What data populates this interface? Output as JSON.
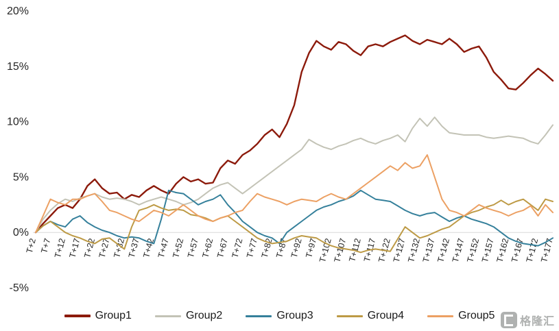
{
  "chart_data": {
    "type": "line",
    "title": "",
    "xlabel": "",
    "ylabel": "",
    "ylim": [
      -5,
      20
    ],
    "grid": "zero-line-only",
    "legend_position": "bottom",
    "x_tick_labels": [
      "T+2",
      "T+7",
      "T+12",
      "T+17",
      "T+22",
      "T+27",
      "T+32",
      "T+37",
      "T+42",
      "T+47",
      "T+52",
      "T+57",
      "T+62",
      "T+67",
      "T+72",
      "T+77",
      "T+82",
      "T+87",
      "T+92",
      "T+97",
      "T+102",
      "T+107",
      "T+112",
      "T+117",
      "T+122",
      "T+127",
      "T+132",
      "T+137",
      "T+142",
      "T+147",
      "T+152",
      "T+157",
      "T+162",
      "T+167",
      "T+172",
      "T+177"
    ],
    "y_ticks": [
      20,
      15,
      10,
      5,
      0,
      -5
    ],
    "y_tick_labels": [
      "20%",
      "15%",
      "10%",
      "5%",
      "0%",
      "-5%"
    ],
    "series": [
      {
        "name": "Group1",
        "color": "#8c1a0b",
        "width": 2.4,
        "values": [
          0,
          0.8,
          1.5,
          2.2,
          2.5,
          2.2,
          3.0,
          4.2,
          4.8,
          4.0,
          3.5,
          3.6,
          3.0,
          3.4,
          3.2,
          3.8,
          4.2,
          3.8,
          3.5,
          4.4,
          5.0,
          4.6,
          4.8,
          4.4,
          4.5,
          5.8,
          6.5,
          6.2,
          7.0,
          7.4,
          8.0,
          8.8,
          9.3,
          8.6,
          9.8,
          11.5,
          14.5,
          16.2,
          17.3,
          16.8,
          16.5,
          17.2,
          17.0,
          16.4,
          16.0,
          16.8,
          17.0,
          16.8,
          17.2,
          17.5,
          17.8,
          17.3,
          17.0,
          17.4,
          17.2,
          17.0,
          17.5,
          17.0,
          16.3,
          16.6,
          16.8,
          15.8,
          14.5,
          13.8,
          13.0,
          12.9,
          13.5,
          14.2,
          14.8,
          14.3,
          13.7
        ]
      },
      {
        "name": "Group2",
        "color": "#c3c3b6",
        "width": 2.0,
        "values": [
          0,
          1.2,
          2.0,
          2.6,
          3.0,
          2.8,
          3.1,
          3.3,
          3.5,
          3.2,
          3.0,
          3.1,
          3.0,
          2.8,
          2.5,
          2.8,
          3.0,
          3.2,
          3.0,
          2.8,
          2.5,
          2.7,
          3.0,
          3.5,
          4.0,
          4.3,
          4.5,
          4.0,
          3.5,
          4.0,
          4.5,
          5.0,
          5.5,
          6.0,
          6.5,
          7.0,
          7.5,
          8.4,
          8.0,
          7.7,
          7.5,
          7.8,
          8.0,
          8.3,
          8.5,
          8.2,
          8.0,
          8.3,
          8.5,
          8.8,
          8.2,
          9.4,
          10.3,
          9.6,
          10.4,
          9.6,
          9.0,
          8.9,
          8.8,
          8.8,
          8.8,
          8.6,
          8.5,
          8.6,
          8.7,
          8.6,
          8.5,
          8.2,
          8.0,
          8.8,
          9.7
        ]
      },
      {
        "name": "Group3",
        "color": "#35809b",
        "width": 2.0,
        "values": [
          0,
          0.6,
          1.0,
          0.7,
          0.5,
          1.2,
          1.5,
          0.9,
          0.5,
          0.2,
          0.0,
          -0.3,
          -0.5,
          -0.4,
          -0.5,
          -0.8,
          -1.0,
          1.2,
          3.8,
          3.6,
          3.5,
          3.0,
          2.5,
          2.8,
          3.0,
          3.4,
          2.5,
          1.8,
          1.0,
          0.5,
          0.0,
          -0.3,
          -0.5,
          -1.0,
          0.0,
          0.5,
          1.0,
          1.5,
          2.0,
          2.3,
          2.5,
          2.8,
          3.0,
          3.3,
          3.8,
          3.4,
          3.0,
          2.9,
          2.8,
          2.4,
          2.0,
          1.7,
          1.5,
          1.7,
          1.8,
          1.4,
          1.0,
          1.3,
          1.5,
          1.2,
          1.0,
          0.8,
          0.5,
          0.0,
          -0.5,
          -0.8,
          -1.0,
          -1.1,
          -1.2,
          -0.9,
          -0.5
        ]
      },
      {
        "name": "Group4",
        "color": "#bd9a45",
        "width": 2.0,
        "values": [
          0,
          0.6,
          1.0,
          0.5,
          0.0,
          -0.3,
          -0.5,
          -0.8,
          -1.0,
          -0.6,
          -0.5,
          -1.0,
          -1.5,
          0.5,
          2.0,
          2.2,
          2.5,
          2.2,
          2.0,
          2.1,
          2.0,
          1.6,
          1.5,
          1.3,
          1.0,
          1.3,
          1.5,
          1.0,
          0.5,
          0.0,
          -0.5,
          -0.8,
          -1.0,
          -0.9,
          -0.8,
          -0.5,
          -0.3,
          -0.4,
          -0.5,
          -0.9,
          -1.2,
          -1.4,
          -1.5,
          -1.6,
          -1.8,
          -1.6,
          -1.5,
          -1.6,
          -1.7,
          -0.6,
          0.5,
          0.0,
          -0.5,
          -0.3,
          0.0,
          0.3,
          0.5,
          1.0,
          1.5,
          1.8,
          2.0,
          2.3,
          2.5,
          2.9,
          2.5,
          2.8,
          3.0,
          2.5,
          2.0,
          3.0,
          2.8
        ]
      },
      {
        "name": "Group5",
        "color": "#eca063",
        "width": 2.0,
        "values": [
          0,
          1.5,
          3.0,
          2.7,
          2.5,
          3.0,
          3.0,
          3.3,
          3.5,
          2.8,
          2.0,
          1.8,
          1.5,
          1.2,
          1.0,
          1.5,
          2.0,
          1.8,
          1.5,
          2.0,
          2.5,
          2.0,
          1.5,
          1.2,
          1.0,
          1.3,
          1.5,
          1.8,
          2.0,
          2.8,
          3.5,
          3.2,
          3.0,
          2.8,
          2.5,
          2.8,
          3.0,
          2.9,
          2.8,
          3.2,
          3.5,
          3.2,
          3.0,
          3.5,
          4.0,
          4.5,
          5.0,
          5.5,
          6.0,
          5.6,
          6.3,
          5.8,
          6.0,
          7.0,
          5.0,
          3.0,
          2.0,
          1.8,
          1.5,
          2.0,
          2.5,
          2.2,
          2.0,
          1.8,
          1.5,
          1.8,
          2.0,
          2.4,
          1.5,
          2.5,
          1.8
        ]
      }
    ]
  },
  "style": {
    "axis_text_color": "#262626",
    "zero_line_color": "#d9d9d9",
    "background": "#ffffff"
  },
  "watermark": {
    "text": "格隆汇"
  }
}
